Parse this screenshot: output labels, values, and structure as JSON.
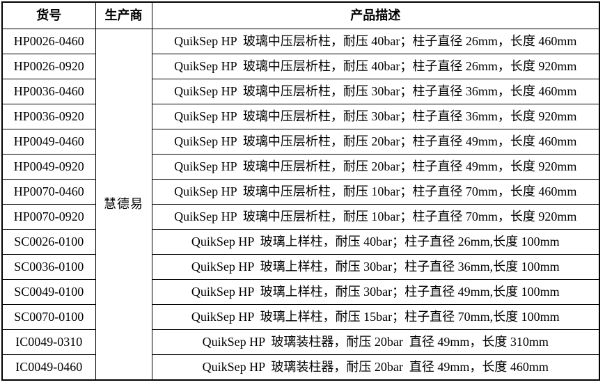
{
  "page": {
    "background_color": "#ffffff",
    "border_color": "#000000",
    "text_color": "#000000"
  },
  "table": {
    "headers": {
      "sku": "货号",
      "manufacturer": "生产商",
      "description": "产品描述"
    },
    "manufacturer": "慧德易",
    "rows": [
      {
        "sku": "HP0026-0460",
        "description": "QuikSep HP  玻璃中压层析柱，耐压 40bar；柱子直径 26mm，长度 460mm"
      },
      {
        "sku": "HP0026-0920",
        "description": "QuikSep HP  玻璃中压层析柱，耐压 40bar；柱子直径 26mm，长度 920mm"
      },
      {
        "sku": "HP0036-0460",
        "description": "QuikSep HP  玻璃中压层析柱，耐压 30bar；柱子直径 36mm，长度 460mm"
      },
      {
        "sku": "HP0036-0920",
        "description": "QuikSep HP  玻璃中压层析柱，耐压 30bar；柱子直径 36mm，长度 920mm"
      },
      {
        "sku": "HP0049-0460",
        "description": "QuikSep HP  玻璃中压层析柱，耐压 20bar；柱子直径 49mm，长度 460mm"
      },
      {
        "sku": "HP0049-0920",
        "description": "QuikSep HP  玻璃中压层析柱，耐压 20bar；柱子直径 49mm，长度 920mm"
      },
      {
        "sku": "HP0070-0460",
        "description": "QuikSep HP  玻璃中压层析柱，耐压 10bar；柱子直径 70mm，长度 460mm"
      },
      {
        "sku": "HP0070-0920",
        "description": "QuikSep HP  玻璃中压层析柱，耐压 10bar；柱子直径 70mm，长度 920mm"
      },
      {
        "sku": "SC0026-0100",
        "description": "QuikSep HP  玻璃上样柱，耐压 40bar；柱子直径 26mm,长度 100mm"
      },
      {
        "sku": "SC0036-0100",
        "description": "QuikSep HP  玻璃上样柱，耐压 30bar；柱子直径 36mm,长度 100mm"
      },
      {
        "sku": "SC0049-0100",
        "description": "QuikSep HP  玻璃上样柱，耐压 30bar；柱子直径 49mm,长度 100mm"
      },
      {
        "sku": "SC0070-0100",
        "description": "QuikSep HP  玻璃上样柱，耐压 15bar；柱子直径 70mm,长度 100mm"
      },
      {
        "sku": "IC0049-0310",
        "description": "QuikSep HP  玻璃装柱器，耐压 20bar  直径 49mm，长度 310mm"
      },
      {
        "sku": "IC0049-0460",
        "description": "QuikSep HP  玻璃装柱器，耐压 20bar  直径 49mm，长度 460mm"
      }
    ]
  }
}
